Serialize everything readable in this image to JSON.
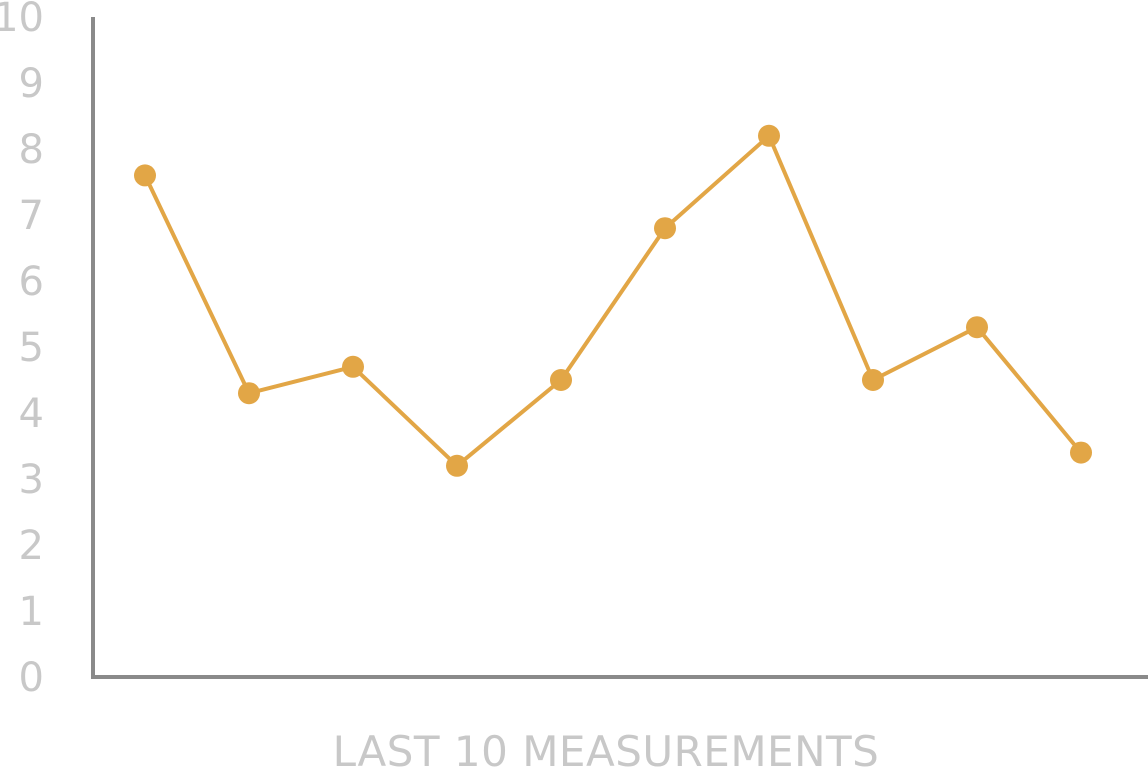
{
  "chart_data": {
    "type": "line",
    "title": "",
    "xlabel": "LAST 10 MEASUREMENTS",
    "ylabel": "",
    "ylim": [
      0,
      10
    ],
    "yticks": [
      "0",
      "1",
      "2",
      "3",
      "4",
      "5",
      "6",
      "7",
      "8",
      "9",
      "10"
    ],
    "grid": false,
    "legend": "none",
    "x": [
      1,
      2,
      3,
      4,
      5,
      6,
      7,
      8,
      9,
      10
    ],
    "series": [
      {
        "values": [
          7.6,
          4.3,
          4.7,
          3.2,
          4.5,
          6.8,
          8.2,
          4.5,
          5.3,
          3.4
        ]
      }
    ],
    "colors": {
      "series": "#E2A646",
      "axis": "#8a8a8a",
      "text": "#c8c8c8"
    }
  }
}
